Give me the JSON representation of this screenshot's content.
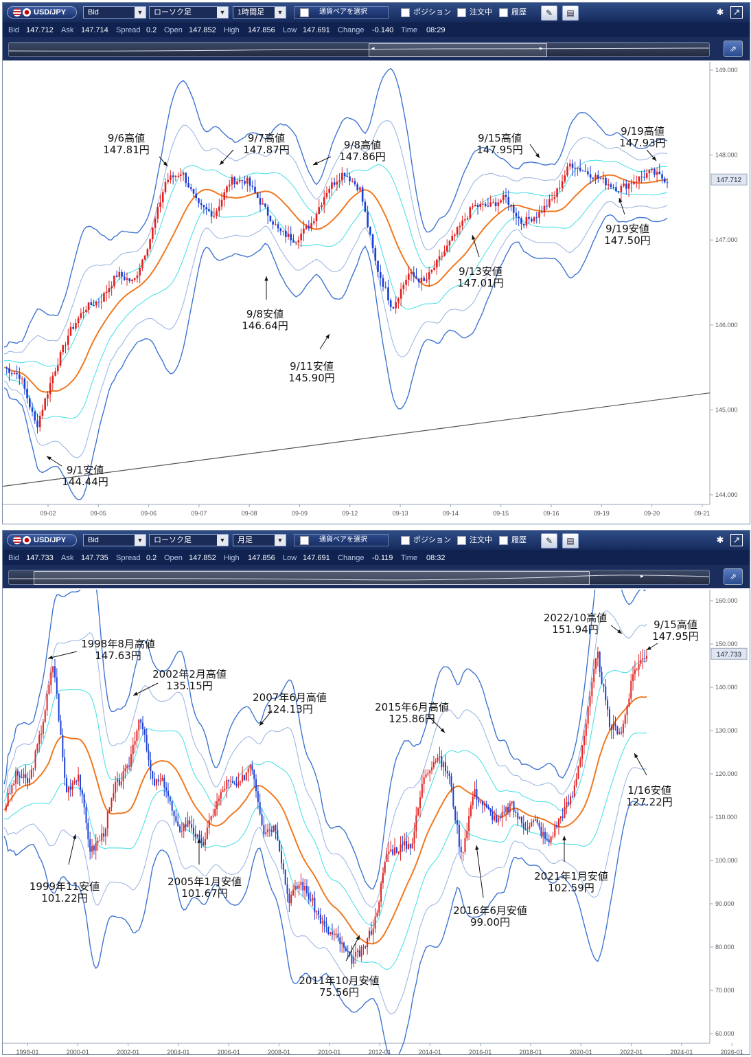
{
  "panel1": {
    "toolbar": {
      "pair": "USD/JPY",
      "price_type": "Bid",
      "chart_type": "ローソク足",
      "timeframe": "1時間足",
      "select_pair": "通貨ペアを選択",
      "position": "ポジション",
      "orders": "注文中",
      "history": "履歴"
    },
    "info": {
      "bid_label": "Bid",
      "bid": "147.712",
      "ask_label": "Ask",
      "ask": "147.714",
      "spread_label": "Spread",
      "spread": "0.2",
      "open_label": "Open",
      "open": "147.852",
      "high_label": "High",
      "high": "147.856",
      "low_label": "Low",
      "low": "147.691",
      "change_label": "Change",
      "change": "-0.140",
      "time_label": "Time",
      "time": "08:29"
    },
    "price_tag": "147.712"
  },
  "panel2": {
    "toolbar": {
      "pair": "USD/JPY",
      "price_type": "Bid",
      "chart_type": "ローソク足",
      "timeframe": "月足",
      "select_pair": "通貨ペアを選択",
      "position": "ポジション",
      "orders": "注文中",
      "history": "履歴"
    },
    "info": {
      "bid_label": "Bid",
      "bid": "147.733",
      "ask_label": "Ask",
      "ask": "147.735",
      "spread_label": "Spread",
      "spread": "0.2",
      "open_label": "Open",
      "open": "147.852",
      "high_label": "High",
      "high": "147.856",
      "low_label": "Low",
      "low": "147.691",
      "change_label": "Change",
      "change": "-0.119",
      "time_label": "Time",
      "time": "08:32"
    },
    "price_tag": "147.733"
  },
  "colors": {
    "up": "#e02020",
    "down": "#1b3fd6",
    "ma": "#f07820",
    "band1": "#4fe0e8",
    "band2": "#9fb7e3",
    "band3": "#3f74d0",
    "axis": "#9aa6b8"
  },
  "chart_data": [
    {
      "type": "candlestick",
      "timeframe": "1時間足",
      "ylim": [
        144.0,
        149.0
      ],
      "yticks": [
        "149.000",
        "148.000",
        "147.000",
        "146.000",
        "145.000",
        "144.000"
      ],
      "xticks": [
        "09-02",
        "09-05",
        "09-06",
        "09-07",
        "09-08",
        "09-09",
        "09-12",
        "09-13",
        "09-14",
        "09-15",
        "09-16",
        "09-19",
        "09-20",
        "09-21"
      ],
      "price_path": [
        {
          "x": "09-01",
          "y": 145.5
        },
        {
          "x": "09-01",
          "y": 145.4
        },
        {
          "x": "09-01",
          "y": 144.8
        },
        {
          "x": "09-01",
          "y": 145.4
        },
        {
          "x": "09-02",
          "y": 145.9
        },
        {
          "x": "09-02",
          "y": 146.2
        },
        {
          "x": "09-05",
          "y": 146.3
        },
        {
          "x": "09-05",
          "y": 146.6
        },
        {
          "x": "09-05",
          "y": 146.5
        },
        {
          "x": "09-06",
          "y": 147.0
        },
        {
          "x": "09-06",
          "y": 147.7
        },
        {
          "x": "09-06",
          "y": 147.8
        },
        {
          "x": "09-06",
          "y": 147.4
        },
        {
          "x": "09-07",
          "y": 147.3
        },
        {
          "x": "09-07",
          "y": 147.7
        },
        {
          "x": "09-07",
          "y": 147.7
        },
        {
          "x": "09-07",
          "y": 147.4
        },
        {
          "x": "09-08",
          "y": 147.1
        },
        {
          "x": "09-08",
          "y": 147.0
        },
        {
          "x": "09-08",
          "y": 147.2
        },
        {
          "x": "09-09",
          "y": 147.6
        },
        {
          "x": "09-09",
          "y": 147.8
        },
        {
          "x": "09-09",
          "y": 147.6
        },
        {
          "x": "09-12",
          "y": 146.7
        },
        {
          "x": "09-12",
          "y": 146.2
        },
        {
          "x": "09-12",
          "y": 146.6
        },
        {
          "x": "09-12",
          "y": 146.5
        },
        {
          "x": "09-13",
          "y": 146.8
        },
        {
          "x": "09-13",
          "y": 147.1
        },
        {
          "x": "09-13",
          "y": 147.4
        },
        {
          "x": "09-14",
          "y": 147.4
        },
        {
          "x": "09-14",
          "y": 147.5
        },
        {
          "x": "09-14",
          "y": 147.2
        },
        {
          "x": "09-15",
          "y": 147.3
        },
        {
          "x": "09-15",
          "y": 147.5
        },
        {
          "x": "09-15",
          "y": 147.9
        },
        {
          "x": "09-16",
          "y": 147.8
        },
        {
          "x": "09-16",
          "y": 147.7
        },
        {
          "x": "09-19",
          "y": 147.6
        },
        {
          "x": "09-19",
          "y": 147.7
        },
        {
          "x": "09-20",
          "y": 147.8
        },
        {
          "x": "09-20",
          "y": 147.7
        }
      ],
      "trendline": [
        {
          "x": "09-01",
          "y": 144.1
        },
        {
          "x": "09-21",
          "y": 145.2
        }
      ],
      "annotations": [
        {
          "label": [
            "9/6高値",
            "147.81円"
          ]
        },
        {
          "label": [
            "9/7高値",
            "147.87円"
          ]
        },
        {
          "label": [
            "9/8高値",
            "147.86円"
          ]
        },
        {
          "label": [
            "9/15高値",
            "147.95円"
          ]
        },
        {
          "label": [
            "9/19高値",
            "147.93円"
          ]
        },
        {
          "label": [
            "9/8安値",
            "146.64円"
          ]
        },
        {
          "label": [
            "9/11安値",
            "145.90円"
          ]
        },
        {
          "label": [
            "9/13安値",
            "147.01円"
          ]
        },
        {
          "label": [
            "9/19安値",
            "147.50円"
          ]
        },
        {
          "label": [
            "9/1安値",
            "144.44円"
          ]
        }
      ]
    },
    {
      "type": "candlestick",
      "timeframe": "月足",
      "ylim": [
        60.0,
        160.0
      ],
      "yticks": [
        "160.000",
        "150.000",
        "140.000",
        "130.000",
        "120.000",
        "110.000",
        "100.000",
        "90.000",
        "80.000",
        "70.000",
        "60.000"
      ],
      "xticks": [
        "1998-01",
        "2000-01",
        "2002-01",
        "2004-01",
        "2006-01",
        "2008-01",
        "2010-01",
        "2012-01",
        "2014-01",
        "2016-01",
        "2018-01",
        "2020-01",
        "2022-01",
        "2024-01",
        "2026-01"
      ],
      "price_path": [
        {
          "x": "1996-07",
          "y": 112
        },
        {
          "x": "1997-01",
          "y": 120
        },
        {
          "x": "1997-07",
          "y": 118
        },
        {
          "x": "1998-01",
          "y": 130
        },
        {
          "x": "1998-08",
          "y": 146
        },
        {
          "x": "1998-12",
          "y": 116
        },
        {
          "x": "1999-06",
          "y": 120
        },
        {
          "x": "1999-11",
          "y": 102
        },
        {
          "x": "2000-06",
          "y": 106
        },
        {
          "x": "2001-01",
          "y": 117
        },
        {
          "x": "2001-08",
          "y": 121
        },
        {
          "x": "2002-02",
          "y": 134
        },
        {
          "x": "2002-08",
          "y": 118
        },
        {
          "x": "2003-06",
          "y": 118
        },
        {
          "x": "2003-12",
          "y": 107
        },
        {
          "x": "2004-06",
          "y": 109
        },
        {
          "x": "2005-01",
          "y": 103
        },
        {
          "x": "2005-08",
          "y": 112
        },
        {
          "x": "2006-01",
          "y": 118
        },
        {
          "x": "2006-08",
          "y": 117
        },
        {
          "x": "2007-06",
          "y": 123
        },
        {
          "x": "2008-01",
          "y": 107
        },
        {
          "x": "2008-08",
          "y": 108
        },
        {
          "x": "2009-01",
          "y": 91
        },
        {
          "x": "2009-08",
          "y": 95
        },
        {
          "x": "2010-01",
          "y": 90
        },
        {
          "x": "2010-08",
          "y": 84
        },
        {
          "x": "2011-04",
          "y": 82
        },
        {
          "x": "2011-10",
          "y": 77
        },
        {
          "x": "2012-06",
          "y": 79
        },
        {
          "x": "2012-12",
          "y": 86
        },
        {
          "x": "2013-05",
          "y": 102
        },
        {
          "x": "2014-01",
          "y": 103
        },
        {
          "x": "2014-08",
          "y": 104
        },
        {
          "x": "2014-12",
          "y": 120
        },
        {
          "x": "2015-06",
          "y": 124
        },
        {
          "x": "2015-12",
          "y": 120
        },
        {
          "x": "2016-06",
          "y": 101
        },
        {
          "x": "2016-12",
          "y": 116
        },
        {
          "x": "2017-06",
          "y": 112
        },
        {
          "x": "2018-01",
          "y": 109
        },
        {
          "x": "2018-10",
          "y": 113
        },
        {
          "x": "2019-06",
          "y": 108
        },
        {
          "x": "2020-01",
          "y": 109
        },
        {
          "x": "2021-01",
          "y": 104
        },
        {
          "x": "2021-07",
          "y": 110
        },
        {
          "x": "2021-12",
          "y": 115
        },
        {
          "x": "2022-04",
          "y": 130
        },
        {
          "x": "2022-10",
          "y": 148
        },
        {
          "x": "2022-12",
          "y": 131
        },
        {
          "x": "2023-01",
          "y": 130
        },
        {
          "x": "2023-06",
          "y": 144
        },
        {
          "x": "2023-09",
          "y": 148
        }
      ],
      "annotations": [
        {
          "label": [
            "1998年8月高値",
            "147.63円"
          ]
        },
        {
          "label": [
            "2002年2月高値",
            "135.15円"
          ]
        },
        {
          "label": [
            "2007年6月高値",
            "124.13円"
          ]
        },
        {
          "label": [
            "2015年6月高値",
            "125.86円"
          ]
        },
        {
          "label": [
            "2022/10高値",
            "151.94円"
          ]
        },
        {
          "label": [
            "9/15高値",
            "147.95円"
          ]
        },
        {
          "label": [
            "1999年11安値",
            "101.22円"
          ]
        },
        {
          "label": [
            "2005年1月安値",
            "101.67円"
          ]
        },
        {
          "label": [
            "2011年10月安値",
            "75.56円"
          ]
        },
        {
          "label": [
            "2016年6月安値",
            "99.00円"
          ]
        },
        {
          "label": [
            "2021年1月安値",
            "102.59円"
          ]
        },
        {
          "label": [
            "1/16安値",
            "127.22円"
          ]
        }
      ]
    }
  ]
}
